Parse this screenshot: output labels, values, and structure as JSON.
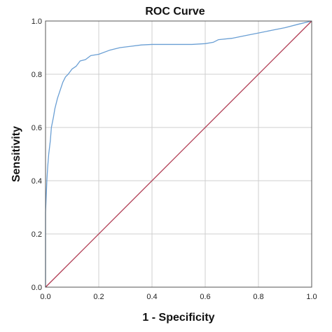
{
  "chart_data": {
    "type": "line",
    "title": "ROC Curve",
    "xlabel": "1 - Specificity",
    "ylabel": "Sensitivity",
    "xlim": [
      0.0,
      1.0
    ],
    "ylim": [
      0.0,
      1.0
    ],
    "xticks": [
      "0.0",
      "0.2",
      "0.4",
      "0.6",
      "0.8",
      "1.0"
    ],
    "yticks": [
      "0.0",
      "0.2",
      "0.4",
      "0.6",
      "0.8",
      "1.0"
    ],
    "grid": true,
    "legend": "none",
    "colors": {
      "roc": "#6a9fd4",
      "reference": "#b03a52"
    },
    "series": [
      {
        "role": "roc",
        "x": [
          0.0,
          0.0,
          0.005,
          0.008,
          0.012,
          0.018,
          0.022,
          0.03,
          0.035,
          0.045,
          0.055,
          0.065,
          0.075,
          0.085,
          0.1,
          0.115,
          0.13,
          0.15,
          0.17,
          0.2,
          0.24,
          0.28,
          0.32,
          0.36,
          0.4,
          0.45,
          0.5,
          0.55,
          0.6,
          0.63,
          0.65,
          0.7,
          0.75,
          0.8,
          0.85,
          0.9,
          0.95,
          1.0
        ],
        "y": [
          0.0,
          0.28,
          0.4,
          0.45,
          0.5,
          0.55,
          0.6,
          0.64,
          0.67,
          0.71,
          0.74,
          0.77,
          0.79,
          0.8,
          0.82,
          0.83,
          0.85,
          0.855,
          0.87,
          0.875,
          0.89,
          0.9,
          0.905,
          0.91,
          0.912,
          0.912,
          0.912,
          0.912,
          0.915,
          0.92,
          0.93,
          0.935,
          0.945,
          0.955,
          0.965,
          0.975,
          0.988,
          1.0
        ]
      },
      {
        "role": "reference",
        "x": [
          0.0,
          1.0
        ],
        "y": [
          0.0,
          1.0
        ]
      }
    ]
  }
}
